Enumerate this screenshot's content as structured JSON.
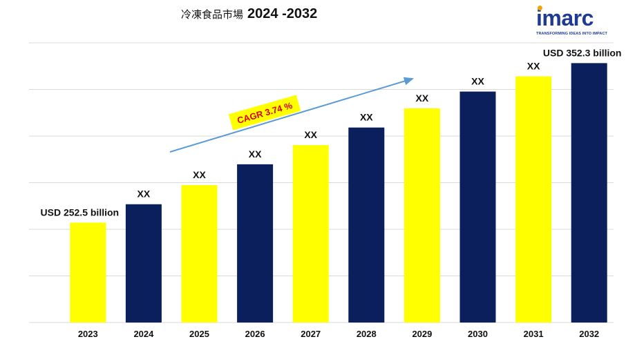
{
  "title": {
    "cjk": "冷凍食品市場",
    "years": "2024 -2032"
  },
  "logo": {
    "brand": "imarc",
    "tagline": "TRANSFORMING IDEAS INTO IMPACT"
  },
  "colors": {
    "yellow": "#ffff00",
    "navy": "#0a1f5c",
    "grid": "#d9d9d9",
    "arrow": "#5b9bd5"
  },
  "chart_data": {
    "type": "bar",
    "title": "冷凍食品市場 2024 -2032",
    "categories": [
      "2023",
      "2024",
      "2025",
      "2026",
      "2027",
      "2028",
      "2029",
      "2030",
      "2031",
      "2032"
    ],
    "values": [
      252.5,
      264.0,
      276.0,
      289.0,
      301.0,
      312.0,
      324.0,
      334.5,
      344.0,
      352.3
    ],
    "bar_colors": [
      "yellow",
      "navy",
      "yellow",
      "navy",
      "yellow",
      "navy",
      "yellow",
      "navy",
      "yellow",
      "navy"
    ],
    "data_labels": [
      "USD 252.5 billion",
      "XX",
      "XX",
      "XX",
      "XX",
      "XX",
      "XX",
      "XX",
      "XX",
      "USD 352.3 billion"
    ],
    "ylim": [
      190,
      365
    ],
    "grid": true,
    "annotation": "CAGR 3.74 %"
  }
}
